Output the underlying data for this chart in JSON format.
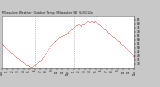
{
  "title": "Milwaukee Weather  Outdoor Temp. Milwaukee WI  6/25/12a",
  "bg_color": "#c8c8c8",
  "plot_bg_color": "#ffffff",
  "line_color": "#cc0000",
  "vline_color": "#888888",
  "vline_style": ":",
  "y_min": 25,
  "y_max": 90,
  "y_ticks": [
    30,
    35,
    40,
    45,
    50,
    55,
    60,
    65,
    70,
    75,
    80,
    85
  ],
  "y_tick_labels": [
    "30",
    "35",
    "40",
    "45",
    "50",
    "55",
    "60",
    "65",
    "70",
    "75",
    "80",
    "85"
  ],
  "x_ticks_labels": [
    "12a",
    "1",
    "2",
    "3",
    "4",
    "5",
    "6",
    "7",
    "8",
    "9",
    "10",
    "11",
    "12p",
    "1",
    "2",
    "3",
    "4",
    "5",
    "6",
    "7",
    "8",
    "9",
    "10",
    "11",
    "12a"
  ],
  "vline_positions": [
    6,
    13
  ],
  "temp_data": [
    55,
    54,
    53,
    52,
    51,
    50,
    48,
    47,
    46,
    45,
    44,
    43,
    42,
    41,
    40,
    39,
    38,
    37,
    37,
    36,
    35,
    34,
    33,
    32,
    31,
    30,
    29,
    28,
    28,
    27,
    27,
    26,
    26,
    26,
    27,
    28,
    29,
    30,
    31,
    32,
    33,
    34,
    35,
    36,
    37,
    38,
    40,
    42,
    44,
    46,
    48,
    50,
    52,
    54,
    55,
    56,
    57,
    58,
    59,
    60,
    61,
    62,
    63,
    64,
    65,
    65,
    66,
    66,
    67,
    67,
    68,
    69,
    70,
    71,
    72,
    73,
    74,
    75,
    76,
    77,
    78,
    78,
    79,
    79,
    78,
    77,
    78,
    79,
    80,
    80,
    81,
    82,
    83,
    83,
    82,
    82,
    83,
    83,
    82,
    82,
    83,
    83,
    82,
    81,
    80,
    79,
    78,
    77,
    76,
    75,
    74,
    73,
    72,
    71,
    70,
    69,
    68,
    67,
    66,
    65,
    64,
    63,
    62,
    61,
    60,
    59,
    58,
    57,
    56,
    55,
    54,
    53,
    52,
    51,
    50,
    48,
    47,
    46,
    45,
    44,
    42,
    41,
    40,
    39
  ]
}
